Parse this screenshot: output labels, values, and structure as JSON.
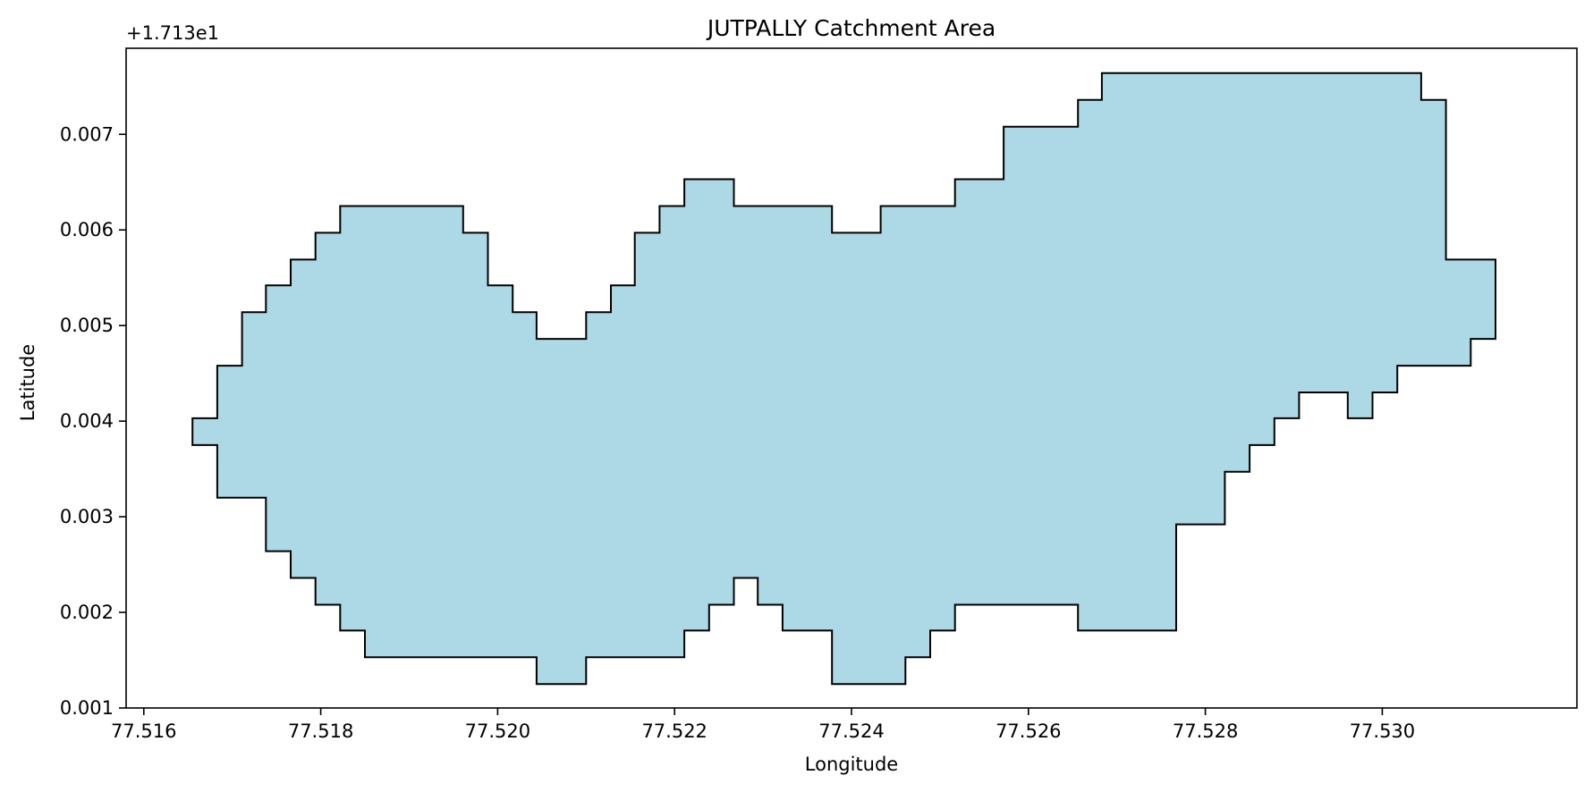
{
  "chart_data": {
    "type": "area",
    "title": "JUTPALLY Catchment Area",
    "xlabel": "Longitude",
    "ylabel": "Latitude",
    "y_offset_label": "+1.713e1",
    "xlim": [
      77.5158,
      77.5322
    ],
    "ylim": [
      0.001,
      0.0079
    ],
    "x_ticks": [
      77.516,
      77.518,
      77.52,
      77.522,
      77.524,
      77.526,
      77.528,
      77.53
    ],
    "x_tick_labels": [
      "77.516",
      "77.518",
      "77.520",
      "77.522",
      "77.524",
      "77.526",
      "77.528",
      "77.530"
    ],
    "y_ticks": [
      0.001,
      0.002,
      0.003,
      0.004,
      0.005,
      0.006,
      0.007
    ],
    "y_tick_labels": [
      "0.001",
      "0.002",
      "0.003",
      "0.004",
      "0.005",
      "0.006",
      "0.007"
    ],
    "grid": false,
    "fill_color": "#add8e6",
    "edge_color": "#000000",
    "polygon": [
      [
        77.51655,
        0.00375
      ],
      [
        77.51655,
        0.00403
      ],
      [
        77.51683,
        0.00403
      ],
      [
        77.51683,
        0.00458
      ],
      [
        77.51711,
        0.00458
      ],
      [
        77.51711,
        0.00514
      ],
      [
        77.51738,
        0.00514
      ],
      [
        77.51738,
        0.00542
      ],
      [
        77.51766,
        0.00542
      ],
      [
        77.51766,
        0.00569
      ],
      [
        77.51794,
        0.00569
      ],
      [
        77.51794,
        0.00597
      ],
      [
        77.51822,
        0.00597
      ],
      [
        77.51822,
        0.00625
      ],
      [
        77.51961,
        0.00625
      ],
      [
        77.51961,
        0.00597
      ],
      [
        77.51989,
        0.00597
      ],
      [
        77.51989,
        0.00542
      ],
      [
        77.52017,
        0.00542
      ],
      [
        77.52017,
        0.00514
      ],
      [
        77.52044,
        0.00514
      ],
      [
        77.52044,
        0.00486
      ],
      [
        77.521,
        0.00486
      ],
      [
        77.521,
        0.00514
      ],
      [
        77.52128,
        0.00514
      ],
      [
        77.52128,
        0.00542
      ],
      [
        77.52155,
        0.00542
      ],
      [
        77.52155,
        0.00597
      ],
      [
        77.52183,
        0.00597
      ],
      [
        77.52183,
        0.00625
      ],
      [
        77.52211,
        0.00625
      ],
      [
        77.52211,
        0.00653
      ],
      [
        77.52267,
        0.00653
      ],
      [
        77.52267,
        0.00625
      ],
      [
        77.52378,
        0.00625
      ],
      [
        77.52378,
        0.00597
      ],
      [
        77.52433,
        0.00597
      ],
      [
        77.52433,
        0.00625
      ],
      [
        77.52517,
        0.00625
      ],
      [
        77.52517,
        0.00653
      ],
      [
        77.52572,
        0.00653
      ],
      [
        77.52572,
        0.00708
      ],
      [
        77.52656,
        0.00708
      ],
      [
        77.52656,
        0.00736
      ],
      [
        77.52683,
        0.00736
      ],
      [
        77.52683,
        0.00764
      ],
      [
        77.53044,
        0.00764
      ],
      [
        77.53044,
        0.00736
      ],
      [
        77.53072,
        0.00736
      ],
      [
        77.53072,
        0.00569
      ],
      [
        77.53128,
        0.00569
      ],
      [
        77.53128,
        0.00486
      ],
      [
        77.531,
        0.00486
      ],
      [
        77.531,
        0.00458
      ],
      [
        77.53017,
        0.00458
      ],
      [
        77.53017,
        0.0043
      ],
      [
        77.52989,
        0.0043
      ],
      [
        77.52989,
        0.00403
      ],
      [
        77.52961,
        0.00403
      ],
      [
        77.52961,
        0.0043
      ],
      [
        77.52906,
        0.0043
      ],
      [
        77.52906,
        0.00403
      ],
      [
        77.52878,
        0.00403
      ],
      [
        77.52878,
        0.00375
      ],
      [
        77.5285,
        0.00375
      ],
      [
        77.5285,
        0.00347
      ],
      [
        77.52822,
        0.00347
      ],
      [
        77.52822,
        0.00292
      ],
      [
        77.52767,
        0.00292
      ],
      [
        77.52767,
        0.00181
      ],
      [
        77.52656,
        0.00181
      ],
      [
        77.52656,
        0.00208
      ],
      [
        77.52517,
        0.00208
      ],
      [
        77.52517,
        0.00181
      ],
      [
        77.52489,
        0.00181
      ],
      [
        77.52489,
        0.00153
      ],
      [
        77.52461,
        0.00153
      ],
      [
        77.52461,
        0.00125
      ],
      [
        77.52378,
        0.00125
      ],
      [
        77.52378,
        0.00181
      ],
      [
        77.52322,
        0.00181
      ],
      [
        77.52322,
        0.00208
      ],
      [
        77.52294,
        0.00208
      ],
      [
        77.52294,
        0.00236
      ],
      [
        77.52267,
        0.00236
      ],
      [
        77.52267,
        0.00208
      ],
      [
        77.52239,
        0.00208
      ],
      [
        77.52239,
        0.00181
      ],
      [
        77.52211,
        0.00181
      ],
      [
        77.52211,
        0.00153
      ],
      [
        77.521,
        0.00153
      ],
      [
        77.521,
        0.00125
      ],
      [
        77.52044,
        0.00125
      ],
      [
        77.52044,
        0.00153
      ],
      [
        77.5185,
        0.00153
      ],
      [
        77.5185,
        0.00181
      ],
      [
        77.51822,
        0.00181
      ],
      [
        77.51822,
        0.00208
      ],
      [
        77.51794,
        0.00208
      ],
      [
        77.51794,
        0.00236
      ],
      [
        77.51766,
        0.00236
      ],
      [
        77.51766,
        0.00264
      ],
      [
        77.51738,
        0.00264
      ],
      [
        77.51738,
        0.0032
      ],
      [
        77.51683,
        0.0032
      ],
      [
        77.51683,
        0.00375
      ]
    ]
  }
}
